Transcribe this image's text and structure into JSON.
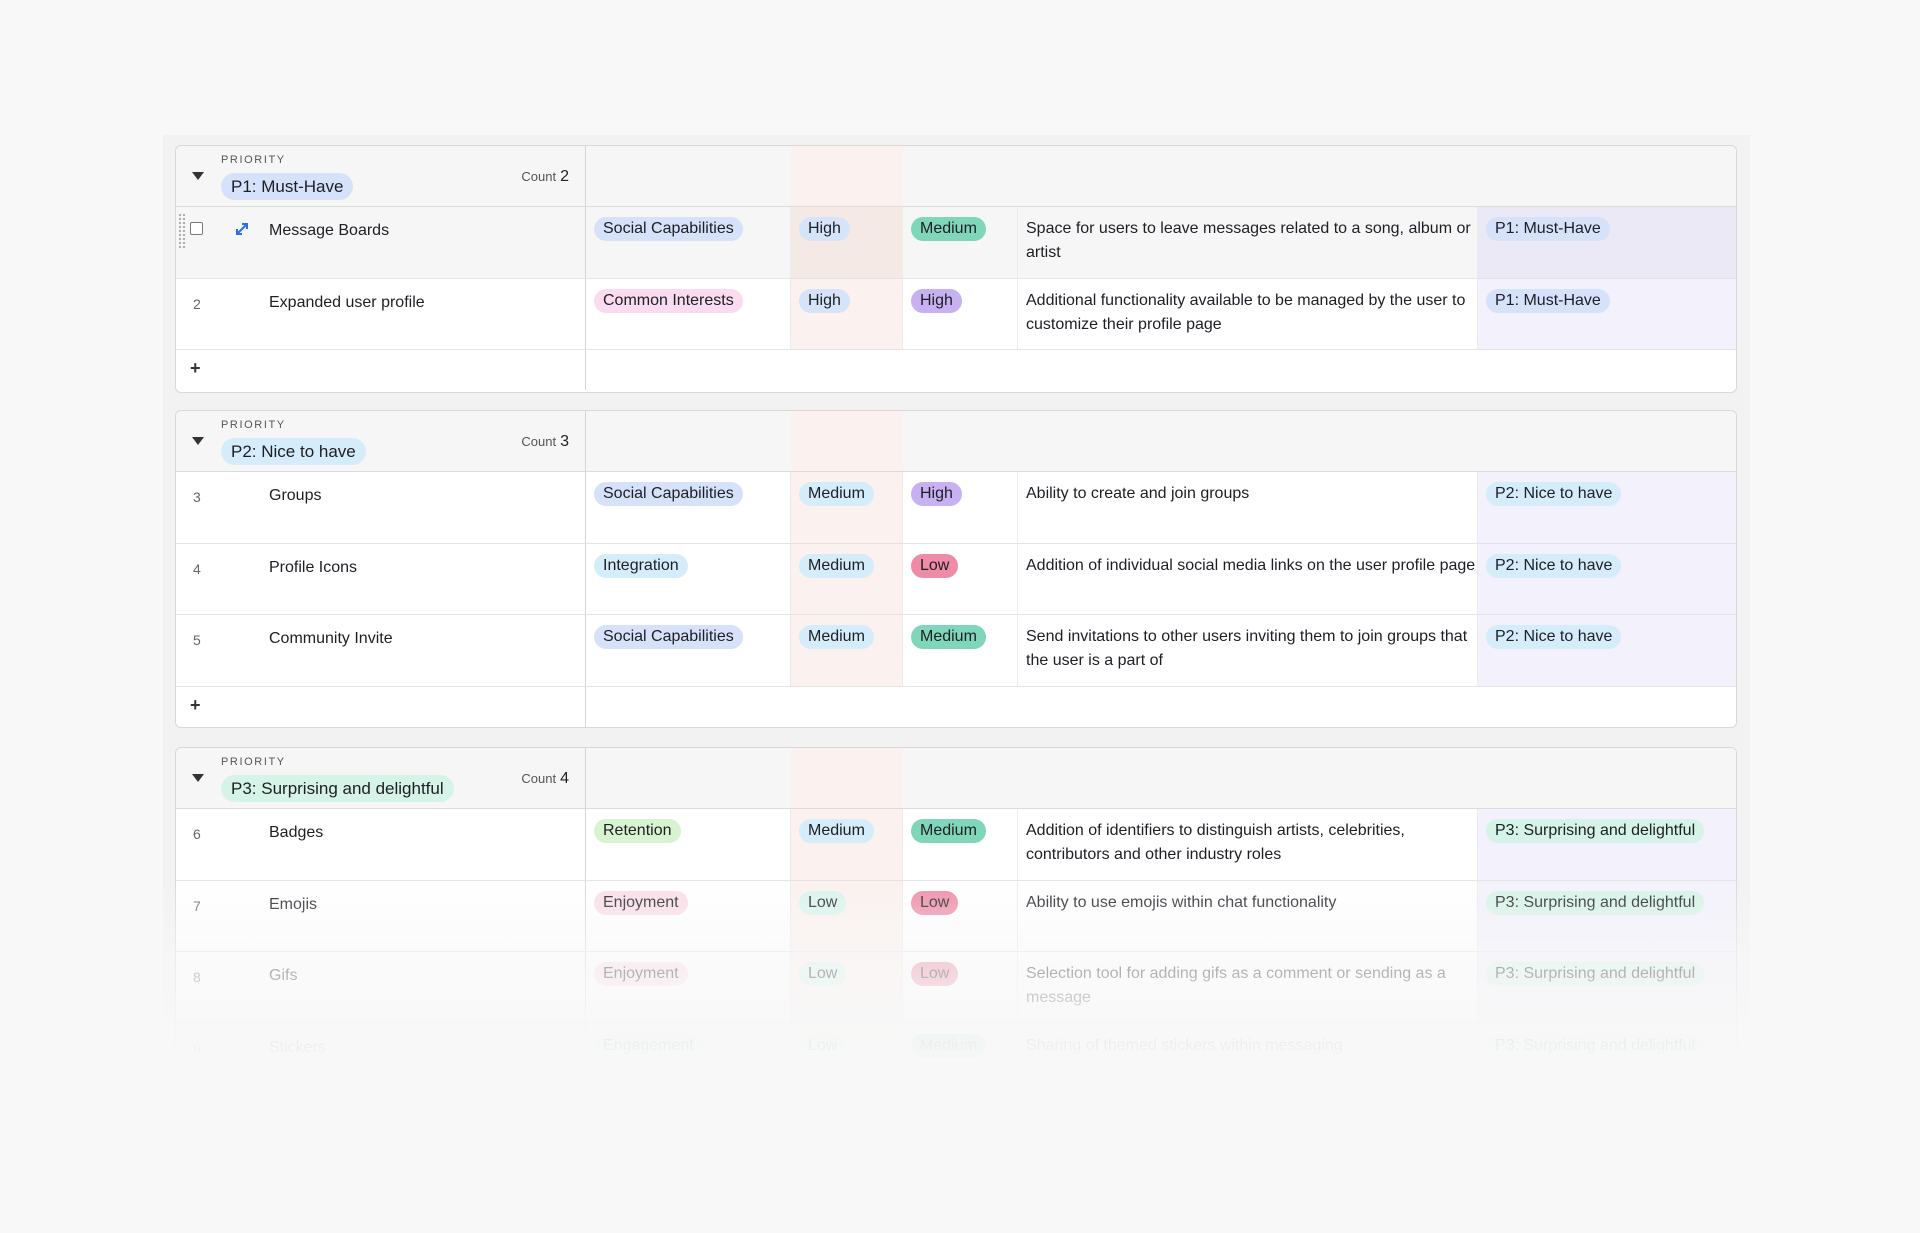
{
  "colors": {
    "social": "#d6e1fa",
    "common": "#fadbf0",
    "integration": "#d5ecfb",
    "retention": "#d8f3cf",
    "enjoyment": "#fbdde7",
    "engagement": "#d8f4e8",
    "val_high": "#d6e4fa",
    "val_medium": "#d5ecfb",
    "val_low": "#d8f4ec",
    "eff_medium": "#7fd6b9",
    "eff_high": "#c8b1f2",
    "eff_low": "#ee8ba6",
    "p1": "#d6e1fa",
    "p2": "#d5ecfb",
    "p3": "#d5f3e6"
  },
  "groups": [
    {
      "label": "PRIORITY",
      "title": "P1: Must-Have",
      "count_label": "Count",
      "count": "2",
      "rows": [
        {
          "num": "",
          "name": "Message Boards",
          "category": "Social Capabilities",
          "value": "High",
          "effort": "Medium",
          "description": "Space for users to leave messages related to a song, album or artist",
          "priority": "P1: Must-Have"
        },
        {
          "num": "2",
          "name": "Expanded user profile",
          "category": "Common Interests",
          "value": "High",
          "effort": "High",
          "description": "Additional functionality available to be managed by the user to customize their profile page",
          "priority": "P1: Must-Have"
        }
      ]
    },
    {
      "label": "PRIORITY",
      "title": "P2: Nice to have",
      "count_label": "Count",
      "count": "3",
      "rows": [
        {
          "num": "3",
          "name": "Groups",
          "category": "Social Capabilities",
          "value": "Medium",
          "effort": "High",
          "description": "Ability to create and join groups",
          "priority": "P2: Nice to have"
        },
        {
          "num": "4",
          "name": "Profile Icons",
          "category": "Integration",
          "value": "Medium",
          "effort": "Low",
          "description": "Addition of individual social media links on the user profile page",
          "priority": "P2: Nice to have"
        },
        {
          "num": "5",
          "name": "Community Invite",
          "category": "Social Capabilities",
          "value": "Medium",
          "effort": "Medium",
          "description": "Send invitations to other users inviting them to join groups that the user is a part of",
          "priority": "P2: Nice to have"
        }
      ]
    },
    {
      "label": "PRIORITY",
      "title": "P3: Surprising and delightful",
      "count_label": "Count",
      "count": "4",
      "rows": [
        {
          "num": "6",
          "name": "Badges",
          "category": "Retention",
          "value": "Medium",
          "effort": "Medium",
          "description": "Addition of identifiers to distinguish artists, celebrities, contributors and other industry roles",
          "priority": "P3: Surprising and delightful"
        },
        {
          "num": "7",
          "name": "Emojis",
          "category": "Enjoyment",
          "value": "Low",
          "effort": "Low",
          "description": "Ability to use emojis within chat functionality",
          "priority": "P3: Surprising and delightful"
        },
        {
          "num": "8",
          "name": "Gifs",
          "category": "Enjoyment",
          "value": "Low",
          "effort": "Low",
          "description": "Selection tool for adding gifs as a comment or sending as a message",
          "priority": "P3: Surprising and delightful"
        },
        {
          "num": "9",
          "name": "Stickers",
          "category": "Engagement",
          "value": "Low",
          "effort": "Medium",
          "description": "Sharing of themed stickers within messaging",
          "priority": "P3: Surprising and delightful"
        }
      ]
    }
  ],
  "add_row_icon": "plus-icon"
}
